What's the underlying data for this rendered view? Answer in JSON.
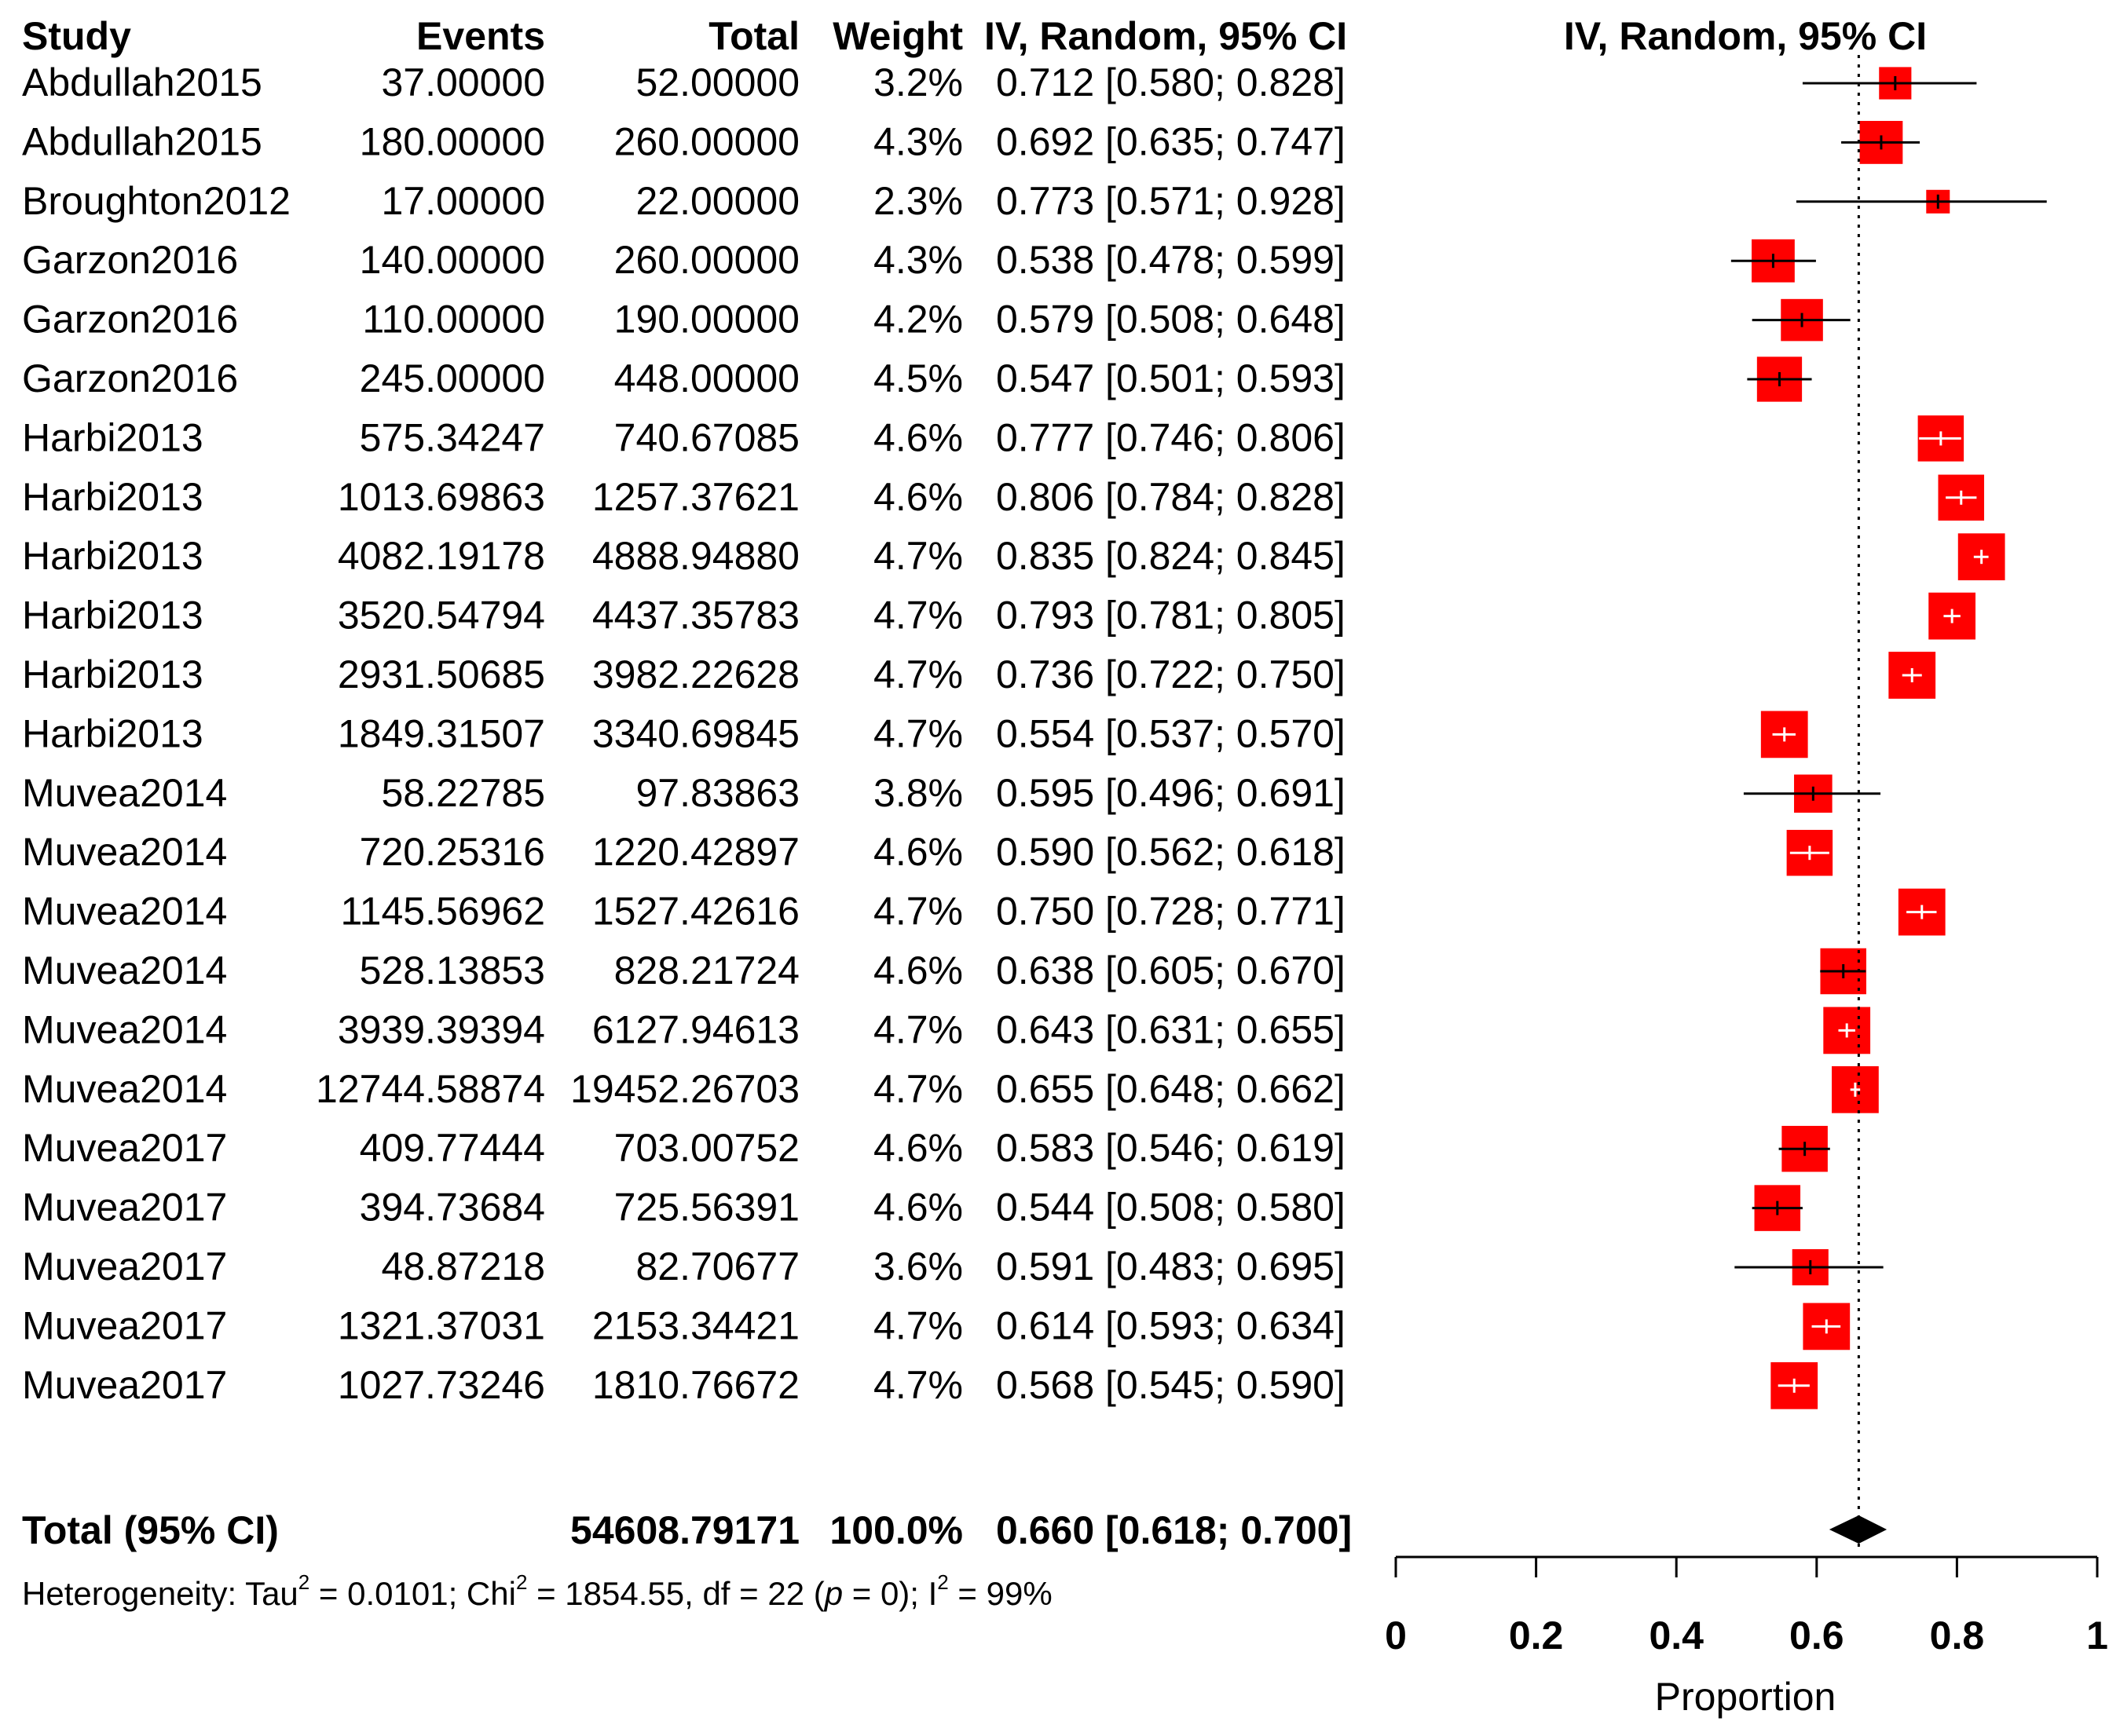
{
  "chart_data": {
    "type": "forest",
    "columns": {
      "study": "Study",
      "events": "Events",
      "total": "Total",
      "weight": "Weight",
      "ci": "IV, Random, 95% CI",
      "plot": "IV, Random, 95% CI"
    },
    "studies": [
      {
        "study": "Abdullah2015",
        "events": "37.00000",
        "total": "52.00000",
        "weight": "3.2%",
        "est": 0.712,
        "lo": 0.58,
        "hi": 0.828,
        "ci_text": "0.712 [0.580; 0.828]"
      },
      {
        "study": "Abdullah2015",
        "events": "180.00000",
        "total": "260.00000",
        "weight": "4.3%",
        "est": 0.692,
        "lo": 0.635,
        "hi": 0.747,
        "ci_text": "0.692 [0.635; 0.747]"
      },
      {
        "study": "Broughton2012",
        "events": "17.00000",
        "total": "22.00000",
        "weight": "2.3%",
        "est": 0.773,
        "lo": 0.571,
        "hi": 0.928,
        "ci_text": "0.773 [0.571; 0.928]"
      },
      {
        "study": "Garzon2016",
        "events": "140.00000",
        "total": "260.00000",
        "weight": "4.3%",
        "est": 0.538,
        "lo": 0.478,
        "hi": 0.599,
        "ci_text": "0.538 [0.478; 0.599]"
      },
      {
        "study": "Garzon2016",
        "events": "110.00000",
        "total": "190.00000",
        "weight": "4.2%",
        "est": 0.579,
        "lo": 0.508,
        "hi": 0.648,
        "ci_text": "0.579 [0.508; 0.648]"
      },
      {
        "study": "Garzon2016",
        "events": "245.00000",
        "total": "448.00000",
        "weight": "4.5%",
        "est": 0.547,
        "lo": 0.501,
        "hi": 0.593,
        "ci_text": "0.547 [0.501; 0.593]"
      },
      {
        "study": "Harbi2013",
        "events": "575.34247",
        "total": "740.67085",
        "weight": "4.6%",
        "est": 0.777,
        "lo": 0.746,
        "hi": 0.806,
        "ci_text": "0.777 [0.746; 0.806]"
      },
      {
        "study": "Harbi2013",
        "events": "1013.69863",
        "total": "1257.37621",
        "weight": "4.6%",
        "est": 0.806,
        "lo": 0.784,
        "hi": 0.828,
        "ci_text": "0.806 [0.784; 0.828]"
      },
      {
        "study": "Harbi2013",
        "events": "4082.19178",
        "total": "4888.94880",
        "weight": "4.7%",
        "est": 0.835,
        "lo": 0.824,
        "hi": 0.845,
        "ci_text": "0.835 [0.824; 0.845]"
      },
      {
        "study": "Harbi2013",
        "events": "3520.54794",
        "total": "4437.35783",
        "weight": "4.7%",
        "est": 0.793,
        "lo": 0.781,
        "hi": 0.805,
        "ci_text": "0.793 [0.781; 0.805]"
      },
      {
        "study": "Harbi2013",
        "events": "2931.50685",
        "total": "3982.22628",
        "weight": "4.7%",
        "est": 0.736,
        "lo": 0.722,
        "hi": 0.75,
        "ci_text": "0.736 [0.722; 0.750]"
      },
      {
        "study": "Harbi2013",
        "events": "1849.31507",
        "total": "3340.69845",
        "weight": "4.7%",
        "est": 0.554,
        "lo": 0.537,
        "hi": 0.57,
        "ci_text": "0.554 [0.537; 0.570]"
      },
      {
        "study": "Muvea2014",
        "events": "58.22785",
        "total": "97.83863",
        "weight": "3.8%",
        "est": 0.595,
        "lo": 0.496,
        "hi": 0.691,
        "ci_text": "0.595 [0.496; 0.691]"
      },
      {
        "study": "Muvea2014",
        "events": "720.25316",
        "total": "1220.42897",
        "weight": "4.6%",
        "est": 0.59,
        "lo": 0.562,
        "hi": 0.618,
        "ci_text": "0.590 [0.562; 0.618]"
      },
      {
        "study": "Muvea2014",
        "events": "1145.56962",
        "total": "1527.42616",
        "weight": "4.7%",
        "est": 0.75,
        "lo": 0.728,
        "hi": 0.771,
        "ci_text": "0.750 [0.728; 0.771]"
      },
      {
        "study": "Muvea2014",
        "events": "528.13853",
        "total": "828.21724",
        "weight": "4.6%",
        "est": 0.638,
        "lo": 0.605,
        "hi": 0.67,
        "ci_text": "0.638 [0.605; 0.670]"
      },
      {
        "study": "Muvea2014",
        "events": "3939.39394",
        "total": "6127.94613",
        "weight": "4.7%",
        "est": 0.643,
        "lo": 0.631,
        "hi": 0.655,
        "ci_text": "0.643 [0.631; 0.655]"
      },
      {
        "study": "Muvea2014",
        "events": "12744.58874",
        "total": "19452.26703",
        "weight": "4.7%",
        "est": 0.655,
        "lo": 0.648,
        "hi": 0.662,
        "ci_text": "0.655 [0.648; 0.662]"
      },
      {
        "study": "Muvea2017",
        "events": "409.77444",
        "total": "703.00752",
        "weight": "4.6%",
        "est": 0.583,
        "lo": 0.546,
        "hi": 0.619,
        "ci_text": "0.583 [0.546; 0.619]"
      },
      {
        "study": "Muvea2017",
        "events": "394.73684",
        "total": "725.56391",
        "weight": "4.6%",
        "est": 0.544,
        "lo": 0.508,
        "hi": 0.58,
        "ci_text": "0.544 [0.508; 0.580]"
      },
      {
        "study": "Muvea2017",
        "events": "48.87218",
        "total": "82.70677",
        "weight": "3.6%",
        "est": 0.591,
        "lo": 0.483,
        "hi": 0.695,
        "ci_text": "0.591 [0.483; 0.695]"
      },
      {
        "study": "Muvea2017",
        "events": "1321.37031",
        "total": "2153.34421",
        "weight": "4.7%",
        "est": 0.614,
        "lo": 0.593,
        "hi": 0.634,
        "ci_text": "0.614 [0.593; 0.634]"
      },
      {
        "study": "Muvea2017",
        "events": "1027.73246",
        "total": "1810.76672",
        "weight": "4.7%",
        "est": 0.568,
        "lo": 0.545,
        "hi": 0.59,
        "ci_text": "0.568 [0.545; 0.590]"
      }
    ],
    "pooled": {
      "label": "Total (95% CI)",
      "total": "54608.79171",
      "weight": "100.0%",
      "est": 0.66,
      "lo": 0.618,
      "hi": 0.7,
      "ci_text": "0.660 [0.618; 0.700]"
    },
    "heterogeneity": {
      "t1": "Heterogeneity: Tau",
      "t2": " = 0.0101; Chi",
      "t3": " = 1854.55, df = 22 (",
      "p": "p",
      "t4": " = 0); I",
      "t5": " = 99%",
      "sup": "2"
    },
    "x_axis": {
      "label": "Proportion",
      "ticks": [
        0,
        0.2,
        0.4,
        0.6,
        0.8,
        1
      ],
      "tick_labels": [
        "0",
        "0.2",
        "0.4",
        "0.6",
        "0.8",
        "1"
      ],
      "range": [
        0,
        1
      ]
    },
    "reference_line": 0.66,
    "colors": {
      "square": "#ff0000",
      "text": "#000000",
      "diamond": "#000000"
    }
  }
}
